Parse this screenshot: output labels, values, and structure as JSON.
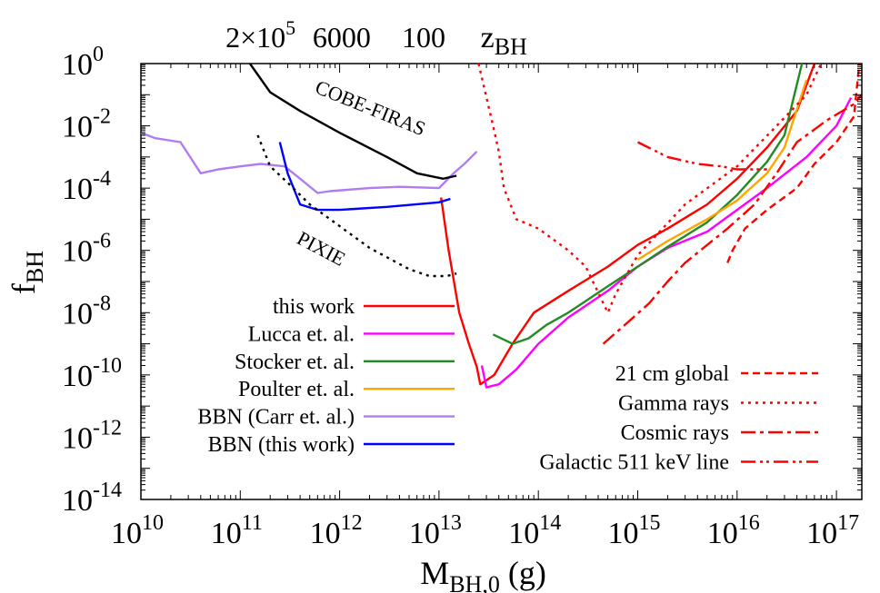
{
  "chart_data": {
    "type": "line",
    "x_scale": "log",
    "y_scale": "log",
    "xlim": [
      10000000000.0,
      1.8e+17
    ],
    "ylim": [
      1e-14,
      1
    ],
    "xlabel": {
      "main": "M",
      "sub": "BH,0",
      "unit": " (g)"
    },
    "ylabel": {
      "main": "f",
      "sub": "BH"
    },
    "x_ticks": [
      {
        "value": 10000000000.0,
        "base": "10",
        "exp": "10"
      },
      {
        "value": 100000000000.0,
        "base": "10",
        "exp": "11"
      },
      {
        "value": 1000000000000.0,
        "base": "10",
        "exp": "12"
      },
      {
        "value": 10000000000000.0,
        "base": "10",
        "exp": "13"
      },
      {
        "value": 100000000000000.0,
        "base": "10",
        "exp": "14"
      },
      {
        "value": 1000000000000000.0,
        "base": "10",
        "exp": "15"
      },
      {
        "value": 1e+16,
        "base": "10",
        "exp": "16"
      },
      {
        "value": 1e+17,
        "base": "10",
        "exp": "17"
      }
    ],
    "y_ticks": [
      {
        "value": 1,
        "base": "10",
        "exp": "0"
      },
      {
        "value": 0.01,
        "base": "10",
        "exp": "-2"
      },
      {
        "value": 0.0001,
        "base": "10",
        "exp": "-4"
      },
      {
        "value": 1e-06,
        "base": "10",
        "exp": "-6"
      },
      {
        "value": 1e-08,
        "base": "10",
        "exp": "-8"
      },
      {
        "value": 1e-10,
        "base": "10",
        "exp": "-10"
      },
      {
        "value": 1e-12,
        "base": "10",
        "exp": "-12"
      },
      {
        "value": 1e-14,
        "base": "10",
        "exp": "-14"
      }
    ],
    "top_axis": {
      "ticks": [
        {
          "text": "2×10",
          "sup": "5",
          "at_x": 160000000000.0
        },
        {
          "text": "6000",
          "at_x": 1050000000000.0
        },
        {
          "text": "100",
          "at_x": 7000000000000.0
        }
      ],
      "label": {
        "main": "z",
        "sub": "BH",
        "at_x": 45000000000000.0
      }
    },
    "series": [
      {
        "name": "this work",
        "color": "#ff0000",
        "dash": "",
        "legend": "left",
        "points": [
          [
            10500000000000.0,
            5e-05
          ],
          [
            12500000000000.0,
            1e-06
          ],
          [
            16000000000000.0,
            1e-08
          ],
          [
            20000000000000.0,
            1e-09
          ],
          [
            24000000000000.0,
            1.8e-10
          ],
          [
            26000000000000.0,
            5e-11
          ],
          [
            36000000000000.0,
            1e-10
          ],
          [
            55000000000000.0,
            1e-09
          ],
          [
            90000000000000.0,
            1e-08
          ],
          [
            200000000000000.0,
            5e-08
          ],
          [
            500000000000000.0,
            3e-07
          ],
          [
            1000000000000000.0,
            1.5e-06
          ],
          [
            2000000000000000.0,
            5e-06
          ],
          [
            5000000000000000.0,
            3e-05
          ],
          [
            1e+16,
            0.0002
          ],
          [
            2e+16,
            0.002
          ],
          [
            4e+16,
            0.03
          ],
          [
            6e+16,
            1
          ]
        ]
      },
      {
        "name": "Lucca et. al.",
        "color": "#ff00ff",
        "dash": "",
        "legend": "left",
        "points": [
          [
            27000000000000.0,
            2e-10
          ],
          [
            30000000000000.0,
            4e-11
          ],
          [
            40000000000000.0,
            5e-11
          ],
          [
            60000000000000.0,
            1.5e-10
          ],
          [
            100000000000000.0,
            1e-09
          ],
          [
            200000000000000.0,
            7e-09
          ],
          [
            500000000000000.0,
            5e-08
          ],
          [
            1000000000000000.0,
            3e-07
          ],
          [
            2000000000000000.0,
            1.2e-06
          ],
          [
            5000000000000000.0,
            4e-06
          ],
          [
            1e+16,
            2e-05
          ],
          [
            2e+16,
            0.0001
          ],
          [
            5e+16,
            0.001
          ],
          [
            1e+17,
            0.01
          ],
          [
            1.4e+17,
            0.08
          ]
        ]
      },
      {
        "name": "Stocker et. al.",
        "color": "#228b22",
        "dash": "",
        "legend": "left",
        "points": [
          [
            35000000000000.0,
            2e-09
          ],
          [
            55000000000000.0,
            1e-09
          ],
          [
            80000000000000.0,
            1.5e-09
          ],
          [
            120000000000000.0,
            4e-09
          ],
          [
            200000000000000.0,
            1e-08
          ],
          [
            500000000000000.0,
            7e-08
          ],
          [
            1000000000000000.0,
            3e-07
          ],
          [
            2000000000000000.0,
            1.3e-06
          ],
          [
            5000000000000000.0,
            8e-06
          ],
          [
            1e+16,
            6e-05
          ],
          [
            2e+16,
            0.0007
          ],
          [
            3e+16,
            0.005
          ],
          [
            4.5e+16,
            1
          ]
        ]
      },
      {
        "name": "Poulter et. al.",
        "color": "#ffa500",
        "dash": "",
        "legend": "left",
        "points": [
          [
            1000000000000000.0,
            5e-07
          ],
          [
            2000000000000000.0,
            2e-06
          ],
          [
            5000000000000000.0,
            1e-05
          ],
          [
            1e+16,
            4e-05
          ],
          [
            2e+16,
            0.0003
          ],
          [
            3e+16,
            0.002
          ],
          [
            5e+16,
            0.3
          ]
        ]
      },
      {
        "name": "BBN (Carr et. al.)",
        "color": "#b07cf0",
        "dash": "",
        "legend": "left",
        "points": [
          [
            10000000000.0,
            0.006
          ],
          [
            14000000000.0,
            0.004
          ],
          [
            25000000000.0,
            0.003
          ],
          [
            40000000000.0,
            0.0003
          ],
          [
            60000000000.0,
            0.0004
          ],
          [
            100000000000.0,
            0.0005
          ],
          [
            160000000000.0,
            0.0006
          ],
          [
            280000000000.0,
            0.0005
          ],
          [
            400000000000.0,
            0.0002
          ],
          [
            600000000000.0,
            7e-05
          ],
          [
            800000000000.0,
            8e-05
          ],
          [
            2000000000000.0,
            0.0001
          ],
          [
            4000000000000.0,
            0.00011
          ],
          [
            10000000000000.0,
            0.0001
          ],
          [
            14000000000000.0,
            0.0003
          ],
          [
            18000000000000.0,
            0.0006
          ],
          [
            24000000000000.0,
            0.0015
          ]
        ]
      },
      {
        "name": "BBN (this work)",
        "color": "#0000ff",
        "dash": "",
        "legend": "left",
        "points": [
          [
            250000000000.0,
            0.003
          ],
          [
            300000000000.0,
            0.0003
          ],
          [
            400000000000.0,
            3e-05
          ],
          [
            600000000000.0,
            2e-05
          ],
          [
            1000000000000.0,
            2e-05
          ],
          [
            3000000000000.0,
            2.5e-05
          ],
          [
            10000000000000.0,
            3.5e-05
          ],
          [
            13000000000000.0,
            4.5e-05
          ]
        ]
      },
      {
        "name": "21 cm global",
        "color": "#ff0000",
        "dash": "8,5",
        "legend": "right",
        "points": [
          [
            8000000000000000.0,
            4e-07
          ],
          [
            9000000000000000.0,
            1e-06
          ],
          [
            1.2e+16,
            5e-06
          ],
          [
            2e+16,
            2e-05
          ],
          [
            4e+16,
            0.0001
          ],
          [
            6e+16,
            0.0006
          ],
          [
            1e+17,
            0.003
          ],
          [
            1.5e+17,
            0.02
          ],
          [
            1.7e+17,
            1
          ]
        ]
      },
      {
        "name": "Gamma rays",
        "color": "#ff0000",
        "dash": "3,5",
        "legend": "right",
        "points": [
          [
            25000000000000.0,
            1
          ],
          [
            35000000000000.0,
            0.01
          ],
          [
            40000000000000.0,
            0.0015
          ],
          [
            45000000000000.0,
            0.0001
          ],
          [
            60000000000000.0,
            1e-05
          ],
          [
            100000000000000.0,
            5e-06
          ],
          [
            200000000000000.0,
            1e-06
          ],
          [
            300000000000000.0,
            3e-07
          ],
          [
            500000000000000.0,
            1e-08
          ],
          [
            600000000000000.0,
            4e-08
          ],
          [
            1000000000000000.0,
            7e-07
          ],
          [
            3000000000000000.0,
            3e-05
          ],
          [
            1e+16,
            0.0005
          ],
          [
            2.5e+16,
            0.01
          ],
          [
            5e+16,
            0.1
          ],
          [
            7e+16,
            1
          ]
        ]
      },
      {
        "name": "Cosmic rays",
        "color": "#ff0000",
        "dash": "16,5,4,5",
        "legend": "right",
        "points": [
          [
            450000000000000.0,
            1e-09
          ],
          [
            800000000000000.0,
            5e-09
          ],
          [
            1300000000000000.0,
            2e-08
          ],
          [
            2000000000000000.0,
            1e-07
          ],
          [
            3000000000000000.0,
            4e-07
          ],
          [
            5000000000000000.0,
            1.5e-06
          ],
          [
            8000000000000000.0,
            5e-06
          ],
          [
            1.5e+16,
            3e-05
          ],
          [
            2.5e+16,
            0.0003
          ],
          [
            4e+16,
            0.003
          ],
          [
            5e+16,
            0.005
          ],
          [
            8e+16,
            0.015
          ],
          [
            1.5e+17,
            0.05
          ],
          [
            1.8e+17,
            0.1
          ]
        ]
      },
      {
        "name": "Galactic 511 keV line",
        "color": "#ff0000",
        "dash": "16,5,3,4,3,5",
        "legend": "right",
        "points": [
          [
            1000000000000000.0,
            0.003
          ],
          [
            2000000000000000.0,
            0.001
          ],
          [
            4000000000000000.0,
            0.0006
          ],
          [
            7000000000000000.0,
            0.0005
          ],
          [
            1e+16,
            0.0004
          ],
          [
            1.4e+16,
            0.0004
          ],
          [
            2e+16,
            0.0004
          ]
        ]
      }
    ],
    "annotations": [
      {
        "text": "COBE-FIRAS",
        "color": "#000000",
        "dash": "",
        "curve": [
          [
            125000000000.0,
            1
          ],
          [
            200000000000.0,
            0.12
          ],
          [
            400000000000.0,
            0.03
          ],
          [
            1000000000000.0,
            0.006
          ],
          [
            3000000000000.0,
            0.001
          ],
          [
            6000000000000.0,
            0.0003
          ],
          [
            11000000000000.0,
            0.0002
          ],
          [
            15000000000000.0,
            0.00025
          ]
        ],
        "at_x": 550000000000.0,
        "at_y": 0.12,
        "angle": 22
      },
      {
        "text": "PIXIE",
        "color": "#000000",
        "dash": "3,5",
        "curve": [
          [
            150000000000.0,
            0.005
          ],
          [
            200000000000.0,
            0.0005
          ],
          [
            300000000000.0,
            0.00015
          ],
          [
            500000000000.0,
            3e-05
          ],
          [
            1000000000000.0,
            6e-06
          ],
          [
            2000000000000.0,
            1.2e-06
          ],
          [
            5000000000000.0,
            2.5e-07
          ],
          [
            8000000000000.0,
            1.5e-07
          ],
          [
            12000000000000.0,
            1.5e-07
          ],
          [
            15000000000000.0,
            1.8e-07
          ]
        ],
        "at_x": 360000000000.0,
        "at_y": 1.8e-06,
        "angle": 28
      }
    ]
  }
}
